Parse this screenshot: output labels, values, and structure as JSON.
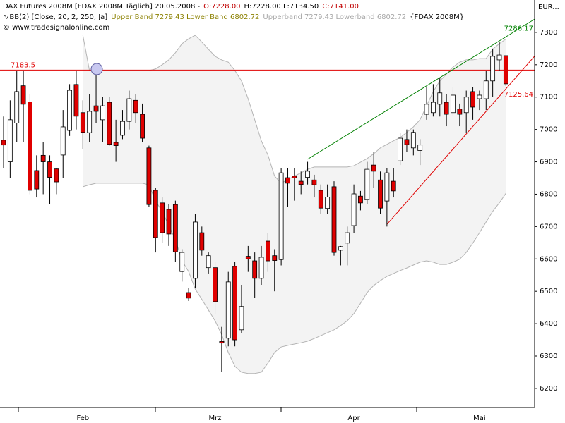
{
  "chart_data": {
    "type": "candlestick",
    "header": [
      [
        {
          "text": "DAX Futures 2008M [FDAX 2008M  Täglich] 20.05.2008 -",
          "color": "#000000"
        },
        {
          "text": "O:7228.00",
          "color": "#c00000"
        },
        {
          "text": "H:7228.00 L:7134.50",
          "color": "#000000"
        },
        {
          "text": "C:7141.00",
          "color": "#c00000"
        }
      ],
      [
        {
          "text": "BB(2) [Close, 20, 2, 250, Ja]",
          "color": "#000000"
        },
        {
          "text": "Upper Band 7279.43 Lower Band 6802.72",
          "color": "#8b8000"
        },
        {
          "text": "Upperband 7279.43 Lowerband 6802.72",
          "color": "#a8a8a8"
        },
        {
          "text": "{FDAX 2008M}",
          "color": "#000000"
        }
      ],
      [
        {
          "text": "© www.tradesignalonline.com",
          "color": "#000000"
        }
      ]
    ],
    "y_axis_label": "EUR...",
    "categories": [
      null,
      null,
      null,
      null,
      null,
      null,
      null,
      null,
      null,
      null,
      null,
      null,
      "Feb",
      null,
      null,
      null,
      null,
      null,
      null,
      null,
      null,
      null,
      null,
      null,
      null,
      null,
      null,
      null,
      null,
      null,
      null,
      null,
      "Mrz",
      null,
      null,
      null,
      null,
      null,
      null,
      null,
      null,
      null,
      null,
      null,
      null,
      null,
      null,
      null,
      null,
      null,
      null,
      null,
      null,
      "Apr",
      null,
      null,
      null,
      null,
      null,
      null,
      null,
      null,
      null,
      null,
      null,
      null,
      null,
      null,
      null,
      null,
      null,
      null,
      "Mai",
      null,
      null,
      null,
      null
    ],
    "open": [
      6967,
      6900,
      7020,
      7135,
      7085,
      6873,
      6920,
      6900,
      6878,
      6921,
      6997,
      7139,
      7052,
      6990,
      7073,
      7030,
      7084,
      6960,
      6982,
      7025,
      7090,
      7047,
      6943,
      6812,
      6773,
      6753,
      6768,
      6561,
      6496,
      6540,
      6681,
      6573,
      6573,
      6345,
      6355,
      6577,
      6381,
      6608,
      6594,
      6540,
      6655,
      6610,
      6598,
      6851,
      6856,
      6840,
      6852,
      6844,
      6812,
      6756,
      6823,
      6627,
      6649,
      6703,
      6794,
      6784,
      6890,
      6844,
      6779,
      6840,
      6903,
      6969,
      6943,
      6935,
      7047,
      7052,
      7078,
      7084,
      7052,
      7063,
      7052,
      7117,
      7095,
      7095,
      7150,
      7215,
      7228
    ],
    "high": [
      7040,
      7090,
      7180,
      7180,
      7110,
      6920,
      6960,
      6920,
      6880,
      7060,
      7140,
      7180,
      7090,
      7110,
      7189,
      7100,
      7100,
      7030,
      7060,
      7120,
      7110,
      7080,
      6950,
      6820,
      6790,
      6770,
      6780,
      6630,
      6510,
      6740,
      6700,
      6620,
      6590,
      6390,
      6560,
      6590,
      6520,
      6640,
      6620,
      6640,
      6680,
      6630,
      6880,
      6880,
      6880,
      6870,
      6900,
      6860,
      6830,
      6830,
      6840,
      6640,
      6700,
      6830,
      6810,
      6900,
      6930,
      6870,
      6880,
      6880,
      6990,
      7000,
      7000,
      6970,
      7130,
      7140,
      7160,
      7110,
      7130,
      7080,
      7120,
      7130,
      7120,
      7180,
      7250,
      7270,
      7228
    ],
    "low": [
      6880,
      6850,
      6960,
      6960,
      6800,
      6790,
      6800,
      6770,
      6800,
      6850,
      6980,
      7000,
      6940,
      6960,
      7020,
      6960,
      6950,
      6900,
      6970,
      7000,
      7020,
      6960,
      6760,
      6620,
      6650,
      6640,
      6590,
      6530,
      6470,
      6510,
      6610,
      6555,
      6430,
      6250,
      6330,
      6330,
      6370,
      6560,
      6480,
      6520,
      6560,
      6500,
      6580,
      6760,
      6780,
      6800,
      6830,
      6790,
      6740,
      6740,
      6610,
      6580,
      6580,
      6680,
      6750,
      6770,
      6820,
      6740,
      6700,
      6790,
      6890,
      6930,
      6920,
      6890,
      7030,
      7040,
      7040,
      7010,
      7040,
      7010,
      6990,
      7030,
      7060,
      7060,
      7100,
      7180,
      7134.5
    ],
    "close": [
      6952,
      7030,
      7117,
      7078,
      6812,
      6816,
      6900,
      6852,
      6838,
      7008,
      7121,
      7041,
      6991,
      7056,
      7056,
      7073,
      6954,
      6950,
      7025,
      7095,
      7052,
      6973,
      6768,
      6666,
      6681,
      6677,
      6622,
      6620,
      6479,
      6714,
      6627,
      6610,
      6468,
      6340,
      6529,
      6350,
      6453,
      6600,
      6540,
      6605,
      6594,
      6595,
      6866,
      6834,
      6850,
      6830,
      6871,
      6829,
      6757,
      6791,
      6620,
      6638,
      6681,
      6801,
      6773,
      6877,
      6871,
      6757,
      6866,
      6810,
      6973,
      6953,
      6991,
      6952,
      7078,
      7084,
      7113,
      7047,
      7106,
      7047,
      7100,
      7069,
      7106,
      7150,
      7226,
      7230,
      7141
    ],
    "up_color": "#ffffff",
    "down_color": "#e00000",
    "bands": [
      {
        "color": "#b4b4b4",
        "values": [
          null,
          null,
          null,
          null,
          null,
          null,
          null,
          null,
          null,
          null,
          null,
          null,
          7291,
          7182,
          7182,
          7182,
          7182,
          7182,
          7182,
          7182,
          7182,
          7182,
          7182,
          7187,
          7200,
          7215,
          7237,
          7265,
          7280,
          7291,
          7270,
          7248,
          7226,
          7215,
          7208,
          7182,
          7150,
          7095,
          7030,
          6965,
          6921,
          6856,
          6834,
          6845,
          6856,
          6866,
          6877,
          6884,
          6884,
          6884,
          6884,
          6884,
          6884,
          6888,
          6899,
          6910,
          6925,
          6943,
          6954,
          6965,
          6975,
          6991,
          7008,
          7030,
          7073,
          7117,
          7150,
          7171,
          7193,
          7208,
          7215,
          7215,
          7219,
          7219,
          7248,
          7265,
          7279.43
        ]
      },
      {
        "color": "#b4b4b4",
        "values": [
          null,
          null,
          null,
          null,
          null,
          null,
          null,
          null,
          null,
          null,
          null,
          null,
          6823,
          6829,
          6834,
          6834,
          6834,
          6834,
          6834,
          6834,
          6834,
          6834,
          6829,
          6779,
          6747,
          6703,
          6660,
          6594,
          6561,
          6507,
          6475,
          6442,
          6409,
          6366,
          6311,
          6268,
          6250,
          6246,
          6246,
          6250,
          6278,
          6311,
          6328,
          6333,
          6337,
          6341,
          6346,
          6354,
          6363,
          6372,
          6381,
          6394,
          6409,
          6431,
          6463,
          6496,
          6518,
          6533,
          6546,
          6555,
          6564,
          6572,
          6581,
          6590,
          6594,
          6590,
          6583,
          6583,
          6590,
          6599,
          6620,
          6649,
          6681,
          6714,
          6747,
          6773,
          6802.72
        ]
      }
    ],
    "band_fill": "#f3f3f3",
    "hline": {
      "value": 7183.5,
      "color": "#e00000"
    },
    "trendlines": [
      {
        "color": "#008000",
        "x": [
          46,
          76
        ],
        "values": [
          6908,
          7286.17
        ]
      },
      {
        "color": "#e00000",
        "x": [
          58,
          76
        ],
        "values": [
          6707,
          7125.64
        ]
      }
    ],
    "ylim": [
      6141,
      7400
    ],
    "yticks": [
      6200,
      6300,
      6400,
      6500,
      6600,
      6700,
      6800,
      6900,
      7000,
      7100,
      7200,
      7300
    ]
  }
}
